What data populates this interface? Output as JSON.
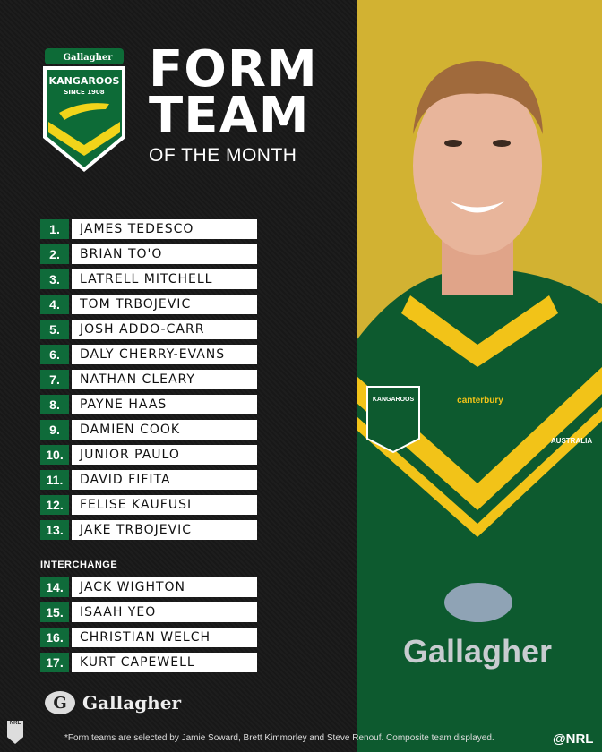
{
  "header": {
    "sponsor": "Gallagher",
    "crest_name": "KANGAROOS",
    "crest_since": "SINCE 1908",
    "title_line1": "FORM",
    "title_line2": "TEAM",
    "subtitle": "OF THE MONTH"
  },
  "team": [
    {
      "num": "1.",
      "name": "JAMES TEDESCO"
    },
    {
      "num": "2.",
      "name": "BRIAN TO'O"
    },
    {
      "num": "3.",
      "name": "LATRELL MITCHELL"
    },
    {
      "num": "4.",
      "name": "TOM TRBOJEVIC"
    },
    {
      "num": "5.",
      "name": "JOSH ADDO-CARR"
    },
    {
      "num": "6.",
      "name": "DALY CHERRY-EVANS"
    },
    {
      "num": "7.",
      "name": "NATHAN CLEARY"
    },
    {
      "num": "8.",
      "name": "PAYNE HAAS"
    },
    {
      "num": "9.",
      "name": "DAMIEN COOK"
    },
    {
      "num": "10.",
      "name": "JUNIOR PAULO"
    },
    {
      "num": "11.",
      "name": "DAVID FIFITA"
    },
    {
      "num": "12.",
      "name": "FELISE KAUFUSI"
    },
    {
      "num": "13.",
      "name": "JAKE TRBOJEVIC"
    }
  ],
  "interchange_label": "INTERCHANGE",
  "interchange": [
    {
      "num": "14.",
      "name": "JACK WIGHTON"
    },
    {
      "num": "15.",
      "name": "ISAAH YEO"
    },
    {
      "num": "16.",
      "name": "CHRISTIAN WELCH"
    },
    {
      "num": "17.",
      "name": "KURT CAPEWELL"
    }
  ],
  "footer": {
    "sponsor": "Gallagher",
    "nrl_logo": "NRL",
    "note": "*Form teams are selected by Jamie Soward, Brett Kimmorley and Steve Renouf. Composite team displayed.",
    "handle": "@NRL"
  },
  "jersey": {
    "brand": "canterbury",
    "sponsor": "Gallagher",
    "crest": "KANGAROOS",
    "badge": "AUSTRALIA"
  },
  "colors": {
    "green": "#0f6b3a",
    "gold": "#f2c318",
    "background": "#1b1b1b"
  }
}
